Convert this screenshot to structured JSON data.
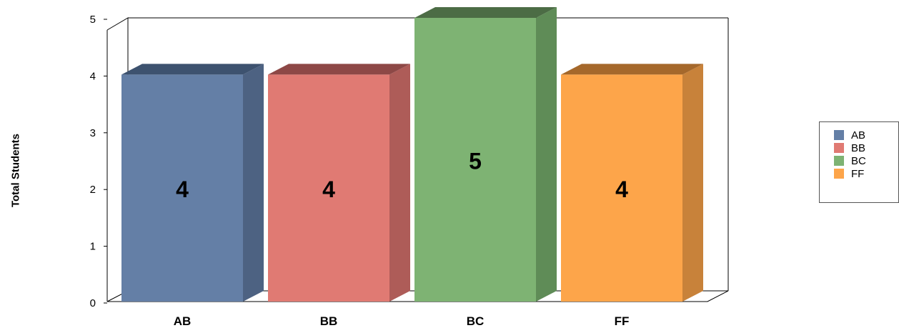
{
  "chart_data": {
    "type": "bar",
    "categories": [
      "AB",
      "BB",
      "BC",
      "FF"
    ],
    "values": [
      4,
      4,
      5,
      4
    ],
    "data_labels": [
      "4",
      "4",
      "5",
      "4"
    ],
    "ylabel": "Total Students",
    "xlabel": "",
    "ylim": [
      0,
      5
    ],
    "yticks": [
      "0",
      "1",
      "2",
      "3",
      "4",
      "5"
    ],
    "style": "3d",
    "grid": false,
    "legend_position": "right",
    "colors": {
      "AB": {
        "front": "#647fa6",
        "side": "#4d6282",
        "top": "#3d526f"
      },
      "BB": {
        "front": "#e07a73",
        "side": "#ae5c58",
        "top": "#8d4846"
      },
      "BC": {
        "front": "#7eb373",
        "side": "#5f8c57",
        "top": "#4c6c45"
      },
      "FF": {
        "front": "#fda54a",
        "side": "#c8823a",
        "top": "#a5682b"
      }
    }
  },
  "legend": {
    "items": [
      {
        "label": "AB",
        "color": "#647fa6"
      },
      {
        "label": "BB",
        "color": "#e07a73"
      },
      {
        "label": "BC",
        "color": "#7eb373"
      },
      {
        "label": "FF",
        "color": "#fda54a"
      }
    ]
  }
}
